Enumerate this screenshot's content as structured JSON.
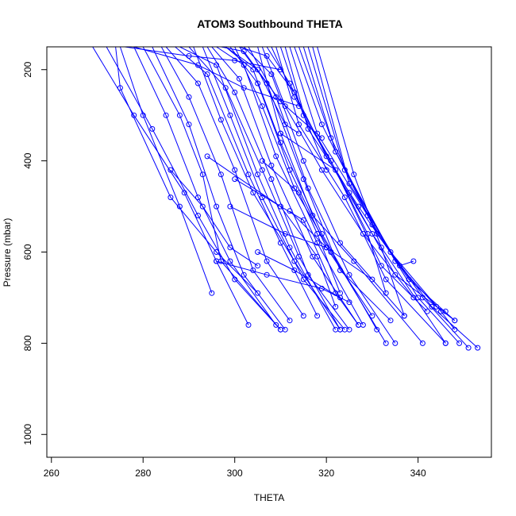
{
  "chart_data": {
    "type": "line",
    "title": "ATOM3 Southbound THETA",
    "xlabel": "THETA",
    "ylabel": "Pressure (mbar)",
    "xlim": [
      259,
      356
    ],
    "ylim": [
      150,
      1050
    ],
    "y_reversed": true,
    "x_ticks": [
      "260",
      "280",
      "300",
      "320",
      "340"
    ],
    "y_ticks": [
      "200",
      "400",
      "600",
      "800",
      "1000"
    ],
    "grid": false,
    "legend": "none",
    "series_color": "#0000ff",
    "series": [
      {
        "x": [
          269,
          278,
          289,
          296,
          303
        ],
        "y": [
          150,
          300,
          470,
          620,
          760
        ]
      },
      {
        "x": [
          272,
          282,
          292,
          300,
          310
        ],
        "y": [
          150,
          330,
          520,
          660,
          770
        ]
      },
      {
        "x": [
          274,
          275,
          286,
          296,
          305
        ],
        "y": [
          150,
          240,
          480,
          600,
          690
        ]
      },
      {
        "x": [
          275,
          280,
          288,
          295
        ],
        "y": [
          150,
          300,
          500,
          690
        ]
      },
      {
        "x": [
          278,
          285,
          292,
          299,
          309
        ],
        "y": [
          150,
          300,
          480,
          620,
          760
        ]
      },
      {
        "x": [
          280,
          288,
          293,
          297,
          310
        ],
        "y": [
          150,
          300,
          430,
          620,
          770
        ]
      },
      {
        "x": [
          282,
          290,
          296,
          302,
          311
        ],
        "y": [
          150,
          320,
          500,
          650,
          770
        ]
      },
      {
        "x": [
          284,
          290,
          297,
          304,
          312
        ],
        "y": [
          150,
          260,
          430,
          640,
          750
        ]
      },
      {
        "x": [
          285,
          292,
          300,
          307,
          315
        ],
        "y": [
          150,
          230,
          420,
          620,
          740
        ]
      },
      {
        "x": [
          287,
          294,
          303,
          310,
          318
        ],
        "y": [
          150,
          210,
          430,
          580,
          740
        ]
      },
      {
        "x": [
          288,
          296,
          305,
          312,
          322
        ],
        "y": [
          150,
          190,
          430,
          590,
          770
        ]
      },
      {
        "x": [
          290,
          298,
          306,
          314,
          323
        ],
        "y": [
          150,
          240,
          420,
          610,
          770
        ]
      },
      {
        "x": [
          291,
          297,
          304,
          313,
          323
        ],
        "y": [
          150,
          310,
          470,
          620,
          770
        ]
      },
      {
        "x": [
          293,
          299,
          306,
          315,
          324
        ],
        "y": [
          150,
          300,
          480,
          660,
          770
        ]
      },
      {
        "x": [
          294,
          300,
          308,
          316,
          325
        ],
        "y": [
          150,
          250,
          440,
          650,
          770
        ]
      },
      {
        "x": [
          295,
          301,
          308,
          317,
          327
        ],
        "y": [
          150,
          220,
          410,
          610,
          760
        ]
      },
      {
        "x": [
          296,
          302,
          309,
          318,
          328
        ],
        "y": [
          150,
          190,
          390,
          580,
          760
        ]
      },
      {
        "x": [
          298,
          304,
          310,
          319,
          331
        ],
        "y": [
          150,
          200,
          360,
          560,
          770
        ]
      },
      {
        "x": [
          299,
          305,
          312,
          320,
          330
        ],
        "y": [
          150,
          230,
          420,
          590,
          740
        ]
      },
      {
        "x": [
          300,
          306,
          313,
          321,
          333
        ],
        "y": [
          150,
          280,
          460,
          600,
          800
        ]
      },
      {
        "x": [
          301,
          307,
          315,
          323,
          334
        ],
        "y": [
          150,
          230,
          440,
          640,
          750
        ]
      },
      {
        "x": [
          302,
          308,
          315,
          323,
          337
        ],
        "y": [
          150,
          210,
          400,
          580,
          740
        ]
      },
      {
        "x": [
          303,
          309,
          316,
          325,
          335
        ],
        "y": [
          150,
          260,
          460,
          650,
          800
        ]
      },
      {
        "x": [
          305,
          310,
          317,
          326,
          341
        ],
        "y": [
          150,
          340,
          520,
          620,
          800
        ]
      },
      {
        "x": [
          306,
          311,
          319,
          328,
          339
        ],
        "y": [
          150,
          280,
          420,
          560,
          700
        ]
      },
      {
        "x": [
          307,
          312,
          320,
          330,
          346
        ],
        "y": [
          150,
          230,
          390,
          560,
          800
        ]
      },
      {
        "x": [
          308,
          313,
          321,
          332,
          342
        ],
        "y": [
          150,
          260,
          400,
          630,
          730
        ]
      },
      {
        "x": [
          309,
          314,
          324,
          333,
          346
        ],
        "y": [
          150,
          320,
          480,
          660,
          800
        ]
      },
      {
        "x": [
          310,
          315,
          325,
          335,
          348
        ],
        "y": [
          150,
          300,
          470,
          650,
          750
        ]
      },
      {
        "x": [
          311,
          316,
          327,
          338,
          348
        ],
        "y": [
          150,
          330,
          500,
          660,
          750
        ]
      },
      {
        "x": [
          312,
          318,
          329,
          340,
          349
        ],
        "y": [
          150,
          340,
          520,
          700,
          800
        ]
      },
      {
        "x": [
          313,
          319,
          330,
          341,
          351
        ],
        "y": [
          150,
          320,
          540,
          700,
          810
        ]
      },
      {
        "x": [
          314,
          321,
          331,
          343,
          353
        ],
        "y": [
          150,
          350,
          560,
          720,
          810
        ]
      },
      {
        "x": [
          315,
          322,
          334,
          345,
          348
        ],
        "y": [
          150,
          380,
          600,
          730,
          770
        ]
      },
      {
        "x": [
          316,
          324,
          335,
          344,
          346
        ],
        "y": [
          150,
          420,
          620,
          720,
          730
        ]
      },
      {
        "x": [
          317,
          325,
          336,
          339
        ],
        "y": [
          150,
          450,
          630,
          620
        ]
      },
      {
        "x": [
          318,
          326,
          332,
          337
        ],
        "y": [
          150,
          430,
          590,
          740
        ]
      },
      {
        "x": [
          298,
          305,
          311,
          314
        ],
        "y": [
          150,
          200,
          320,
          340
        ]
      },
      {
        "x": [
          276,
          290,
          300,
          310
        ],
        "y": [
          150,
          170,
          180,
          200
        ]
      },
      {
        "x": [
          278,
          292,
          302,
          314
        ],
        "y": [
          150,
          190,
          240,
          280
        ]
      },
      {
        "x": [
          297,
          302,
          310,
          319
        ],
        "y": [
          150,
          160,
          270,
          350
        ]
      },
      {
        "x": [
          301,
          307,
          313,
          320
        ],
        "y": [
          150,
          170,
          250,
          420
        ]
      },
      {
        "x": [
          300,
          315,
          322,
          327
        ],
        "y": [
          440,
          530,
          690,
          760
        ]
      },
      {
        "x": [
          294,
          310,
          318,
          322
        ],
        "y": [
          390,
          500,
          610,
          720
        ]
      },
      {
        "x": [
          306,
          314,
          318,
          323
        ],
        "y": [
          400,
          470,
          560,
          690
        ]
      },
      {
        "x": [
          296,
          307,
          319,
          325
        ],
        "y": [
          620,
          650,
          680,
          710
        ]
      },
      {
        "x": [
          310,
          322,
          329,
          333
        ],
        "y": [
          340,
          420,
          560,
          690
        ]
      },
      {
        "x": [
          286,
          293,
          299,
          305
        ],
        "y": [
          420,
          500,
          590,
          630
        ]
      },
      {
        "x": [
          299,
          311,
          320
        ],
        "y": [
          500,
          560,
          590
        ]
      },
      {
        "x": [
          305,
          313,
          323
        ],
        "y": [
          600,
          640,
          700
        ]
      },
      {
        "x": [
          312,
          320,
          330
        ],
        "y": [
          510,
          590,
          660
        ]
      }
    ]
  }
}
